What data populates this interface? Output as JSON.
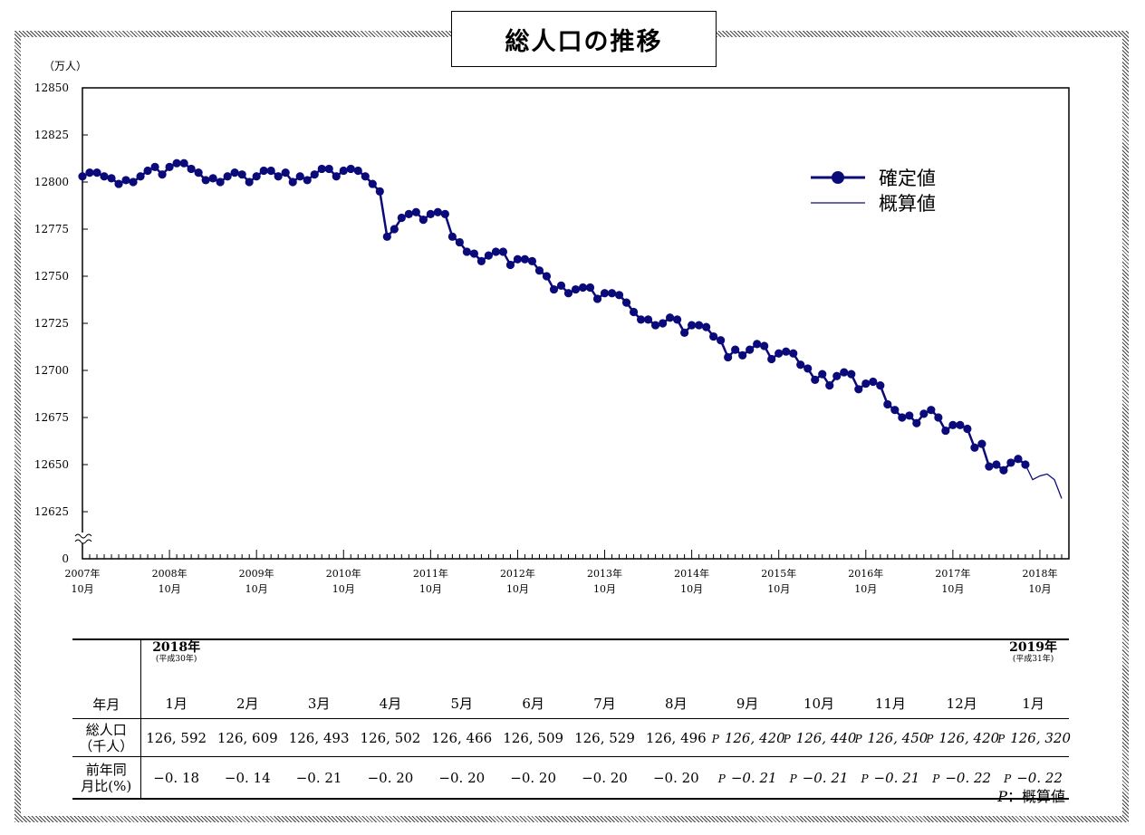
{
  "title": "総人口の推移",
  "chart_data": {
    "type": "line",
    "title": "総人口の推移",
    "y_unit": "（万人）",
    "ylim": [
      12625,
      12850
    ],
    "y_ticks": [
      "12850",
      "12825",
      "12800",
      "12775",
      "12750",
      "12725",
      "12700",
      "12675",
      "12650",
      "12625",
      "0"
    ],
    "axis_break": true,
    "x_tick_labels": [
      [
        "2007年",
        "10月"
      ],
      [
        "2008年",
        "10月"
      ],
      [
        "2009年",
        "10月"
      ],
      [
        "2010年",
        "10月"
      ],
      [
        "2011年",
        "10月"
      ],
      [
        "2012年",
        "10月"
      ],
      [
        "2013年",
        "10月"
      ],
      [
        "2014年",
        "10月"
      ],
      [
        "2015年",
        "10月"
      ],
      [
        "2016年",
        "10月"
      ],
      [
        "2017年",
        "10月"
      ],
      [
        "2018年",
        "10月"
      ]
    ],
    "legend": {
      "position": "top-right",
      "entries": [
        {
          "label": "確定値",
          "style": "line-marker"
        },
        {
          "label": "概算値",
          "style": "line"
        }
      ]
    },
    "colors": {
      "series": "#0a0a7a"
    },
    "x_start": "2007-10",
    "series": [
      {
        "name": "確定値",
        "values": [
          12803,
          12805,
          12805,
          12803,
          12802,
          12799,
          12801,
          12800,
          12803,
          12806,
          12808,
          12804,
          12808,
          12810,
          12810,
          12807,
          12805,
          12801,
          12802,
          12800,
          12803,
          12805,
          12804,
          12800,
          12803,
          12806,
          12806,
          12803,
          12805,
          12800,
          12803,
          12801,
          12804,
          12807,
          12807,
          12803,
          12806,
          12807,
          12806,
          12803,
          12799,
          12795,
          12771,
          12775,
          12781,
          12783,
          12784,
          12780,
          12783,
          12784,
          12783,
          12771,
          12768,
          12763,
          12762,
          12758,
          12761,
          12763,
          12763,
          12756,
          12759,
          12759,
          12758,
          12753,
          12750,
          12743,
          12745,
          12741,
          12743,
          12744,
          12744,
          12738,
          12741,
          12741,
          12740,
          12736,
          12731,
          12727,
          12727,
          12724,
          12725,
          12728,
          12727,
          12720,
          12724,
          12724,
          12723,
          12718,
          12716,
          12707,
          12711,
          12708,
          12711,
          12714,
          12713,
          12706,
          12709,
          12710,
          12709,
          12703,
          12701,
          12695,
          12698,
          12692,
          12697,
          12699,
          12698,
          12690,
          12693,
          12694,
          12692,
          12682,
          12679,
          12675,
          12676,
          12672,
          12677,
          12679,
          12675,
          12668,
          12671,
          12671,
          12669,
          12659,
          12661,
          12649,
          12650,
          12647,
          12651,
          12653,
          12650
        ]
      },
      {
        "name": "概算値",
        "start_index": 130,
        "values": [
          12650,
          12642,
          12644,
          12645,
          12642,
          12632
        ]
      }
    ]
  },
  "table": {
    "year_start": {
      "year": "2018年",
      "era": "(平成30年)"
    },
    "year_end": {
      "year": "2019年",
      "era": "(平成31年)"
    },
    "row_labels": {
      "month": "年月",
      "population": [
        "総人口",
        "（千人）"
      ],
      "change": [
        "前年同",
        "月比(%)"
      ]
    },
    "provisional_mark": "P",
    "columns": [
      {
        "month": "1月",
        "population": "126, 592",
        "change": "−0. 18",
        "provisional": false
      },
      {
        "month": "2月",
        "population": "126, 609",
        "change": "−0. 14",
        "provisional": false
      },
      {
        "month": "3月",
        "population": "126, 493",
        "change": "−0. 21",
        "provisional": false
      },
      {
        "month": "4月",
        "population": "126, 502",
        "change": "−0. 20",
        "provisional": false
      },
      {
        "month": "5月",
        "population": "126, 466",
        "change": "−0. 20",
        "provisional": false
      },
      {
        "month": "6月",
        "population": "126, 509",
        "change": "−0. 20",
        "provisional": false
      },
      {
        "month": "7月",
        "population": "126, 529",
        "change": "−0. 20",
        "provisional": false
      },
      {
        "month": "8月",
        "population": "126, 496",
        "change": "−0. 20",
        "provisional": false
      },
      {
        "month": "9月",
        "population": "126, 420",
        "change": "−0. 21",
        "provisional": true
      },
      {
        "month": "10月",
        "population": "126, 440",
        "change": "−0. 21",
        "provisional": true
      },
      {
        "month": "11月",
        "population": "126, 450",
        "change": "−0. 21",
        "provisional": true
      },
      {
        "month": "12月",
        "population": "126, 420",
        "change": "−0. 22",
        "provisional": true
      },
      {
        "month": "1月",
        "population": "126, 320",
        "change": "−0. 22",
        "provisional": true
      }
    ]
  },
  "footnote": {
    "mark": "P",
    "text": "：概算値"
  }
}
